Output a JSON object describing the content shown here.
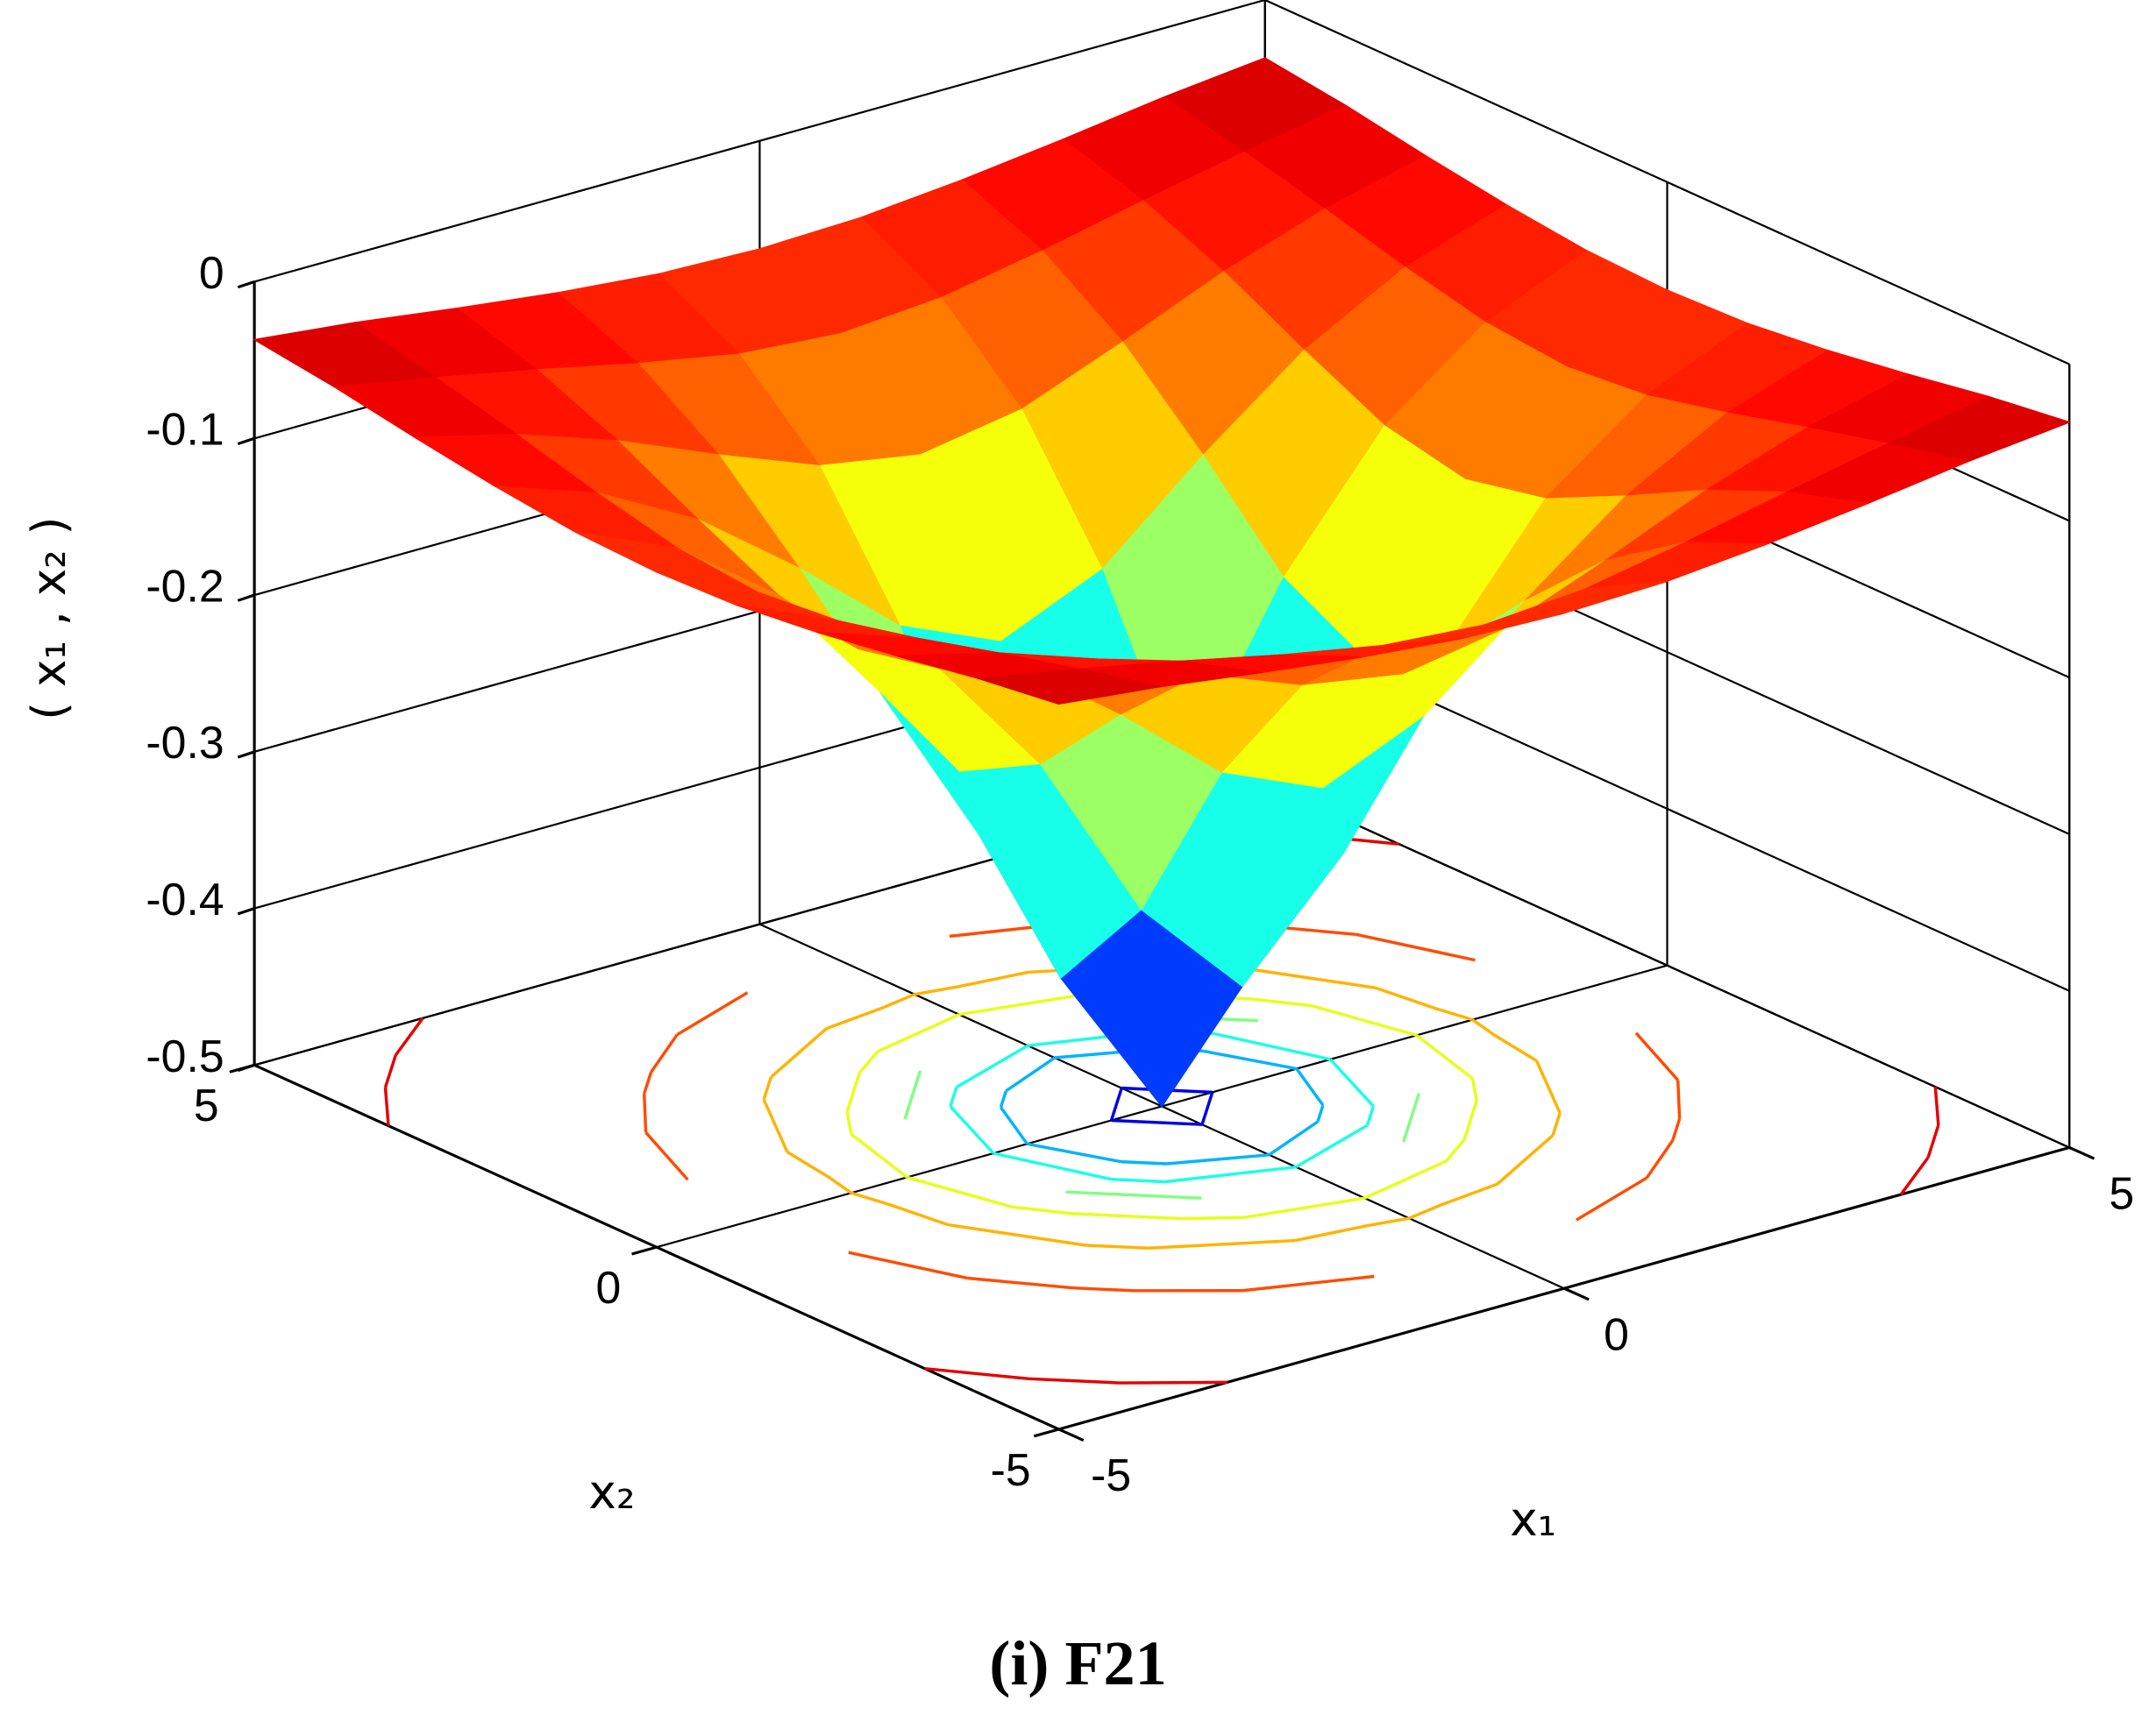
{
  "chart_data": {
    "type": "surface3d",
    "caption": "(i) F21",
    "xlabel": "x₁",
    "ylabel": "x₂",
    "zlabel": "( x₁ , x₂ )",
    "x1": [
      -5,
      -4,
      -3,
      -2,
      -1,
      0,
      1,
      2,
      3,
      4,
      5
    ],
    "x2": [
      -5,
      -4,
      -3,
      -2,
      -1,
      0,
      1,
      2,
      3,
      4,
      5
    ],
    "z": [
      [
        -0.037,
        -0.044,
        -0.053,
        -0.061,
        -0.067,
        -0.069,
        -0.067,
        -0.061,
        -0.053,
        -0.044,
        -0.037
      ],
      [
        -0.044,
        -0.056,
        -0.069,
        -0.083,
        -0.095,
        -0.1,
        -0.095,
        -0.083,
        -0.069,
        -0.056,
        -0.044
      ],
      [
        -0.053,
        -0.069,
        -0.091,
        -0.118,
        -0.143,
        -0.154,
        -0.143,
        -0.118,
        -0.091,
        -0.069,
        -0.053
      ],
      [
        -0.061,
        -0.083,
        -0.118,
        -0.167,
        -0.222,
        -0.25,
        -0.222,
        -0.167,
        -0.118,
        -0.083,
        -0.061
      ],
      [
        -0.067,
        -0.095,
        -0.143,
        -0.222,
        -0.333,
        -0.4,
        -0.333,
        -0.222,
        -0.143,
        -0.095,
        -0.067
      ],
      [
        -0.069,
        -0.1,
        -0.154,
        -0.25,
        -0.4,
        -0.5,
        -0.4,
        -0.25,
        -0.154,
        -0.1,
        -0.069
      ],
      [
        -0.067,
        -0.095,
        -0.143,
        -0.222,
        -0.333,
        -0.4,
        -0.333,
        -0.222,
        -0.143,
        -0.095,
        -0.067
      ],
      [
        -0.061,
        -0.083,
        -0.118,
        -0.167,
        -0.222,
        -0.25,
        -0.222,
        -0.167,
        -0.118,
        -0.083,
        -0.061
      ],
      [
        -0.053,
        -0.069,
        -0.091,
        -0.118,
        -0.143,
        -0.154,
        -0.143,
        -0.118,
        -0.091,
        -0.069,
        -0.053
      ],
      [
        -0.044,
        -0.056,
        -0.069,
        -0.083,
        -0.095,
        -0.1,
        -0.095,
        -0.083,
        -0.069,
        -0.056,
        -0.044
      ],
      [
        -0.037,
        -0.044,
        -0.053,
        -0.061,
        -0.067,
        -0.069,
        -0.067,
        -0.061,
        -0.053,
        -0.044,
        -0.037
      ]
    ],
    "contour_levels": [
      -0.45,
      -0.4,
      -0.35,
      -0.3,
      -0.25,
      -0.2,
      -0.15,
      -0.1,
      -0.05
    ],
    "colormap": "jet",
    "x1lim": [
      -5,
      5
    ],
    "x2lim": [
      -5,
      5
    ],
    "zlim": [
      -0.5,
      0
    ],
    "x1ticks": [
      -5,
      0,
      5
    ],
    "x2ticks": [
      -5,
      0,
      5
    ],
    "zticks": [
      -0.5,
      -0.4,
      -0.3,
      -0.2,
      -0.1,
      0
    ],
    "grid": true
  }
}
